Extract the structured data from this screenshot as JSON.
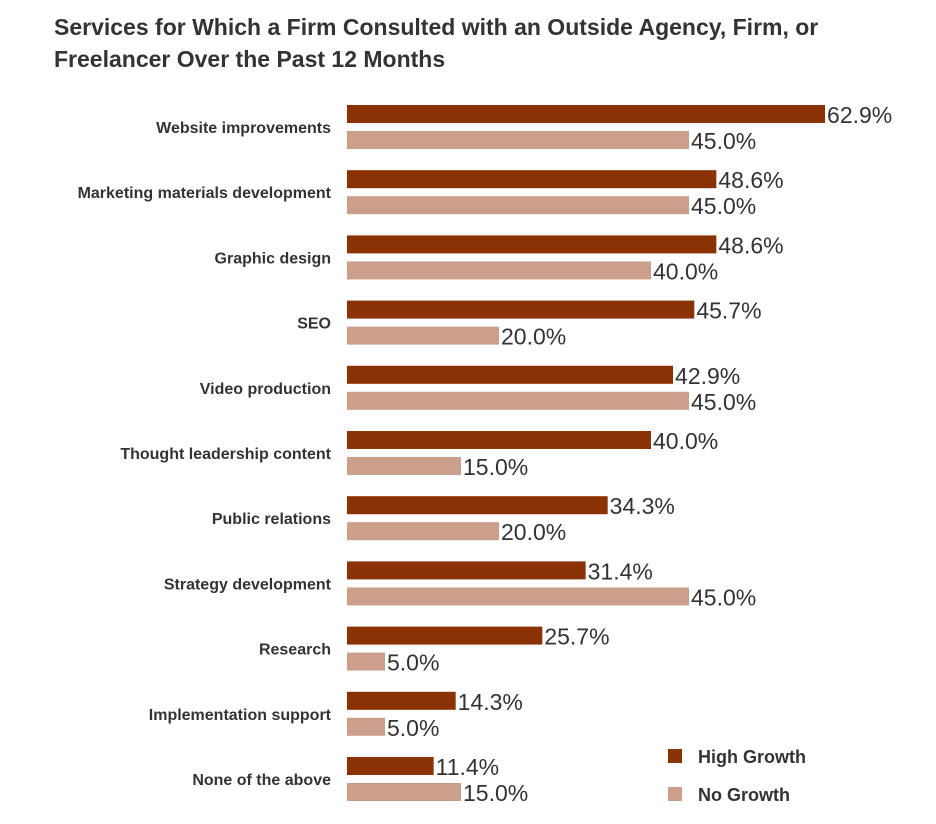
{
  "chart_data": {
    "type": "bar",
    "orientation": "horizontal",
    "title": "Services for Which a Firm Consulted with an Outside Agency, Firm, or Freelancer Over the Past 12 Months",
    "categories": [
      "Website improvements",
      "Marketing materials development",
      "Graphic design",
      "SEO",
      "Video production",
      "Thought leadership content",
      "Public relations",
      "Strategy development",
      "Research",
      "Implementation support",
      "None of the above"
    ],
    "series": [
      {
        "name": "High Growth",
        "color": "#8B3205",
        "values": [
          62.9,
          48.6,
          48.6,
          45.7,
          42.9,
          40.0,
          34.3,
          31.4,
          25.7,
          14.3,
          11.4
        ]
      },
      {
        "name": "No Growth",
        "color": "#CC9E8C",
        "values": [
          45.0,
          45.0,
          40.0,
          20.0,
          45.0,
          15.0,
          20.0,
          45.0,
          5.0,
          5.0,
          15.0
        ]
      }
    ],
    "value_suffix": "%",
    "xlim": [
      0,
      100
    ],
    "grid": false,
    "legend_position": "bottom-right"
  }
}
